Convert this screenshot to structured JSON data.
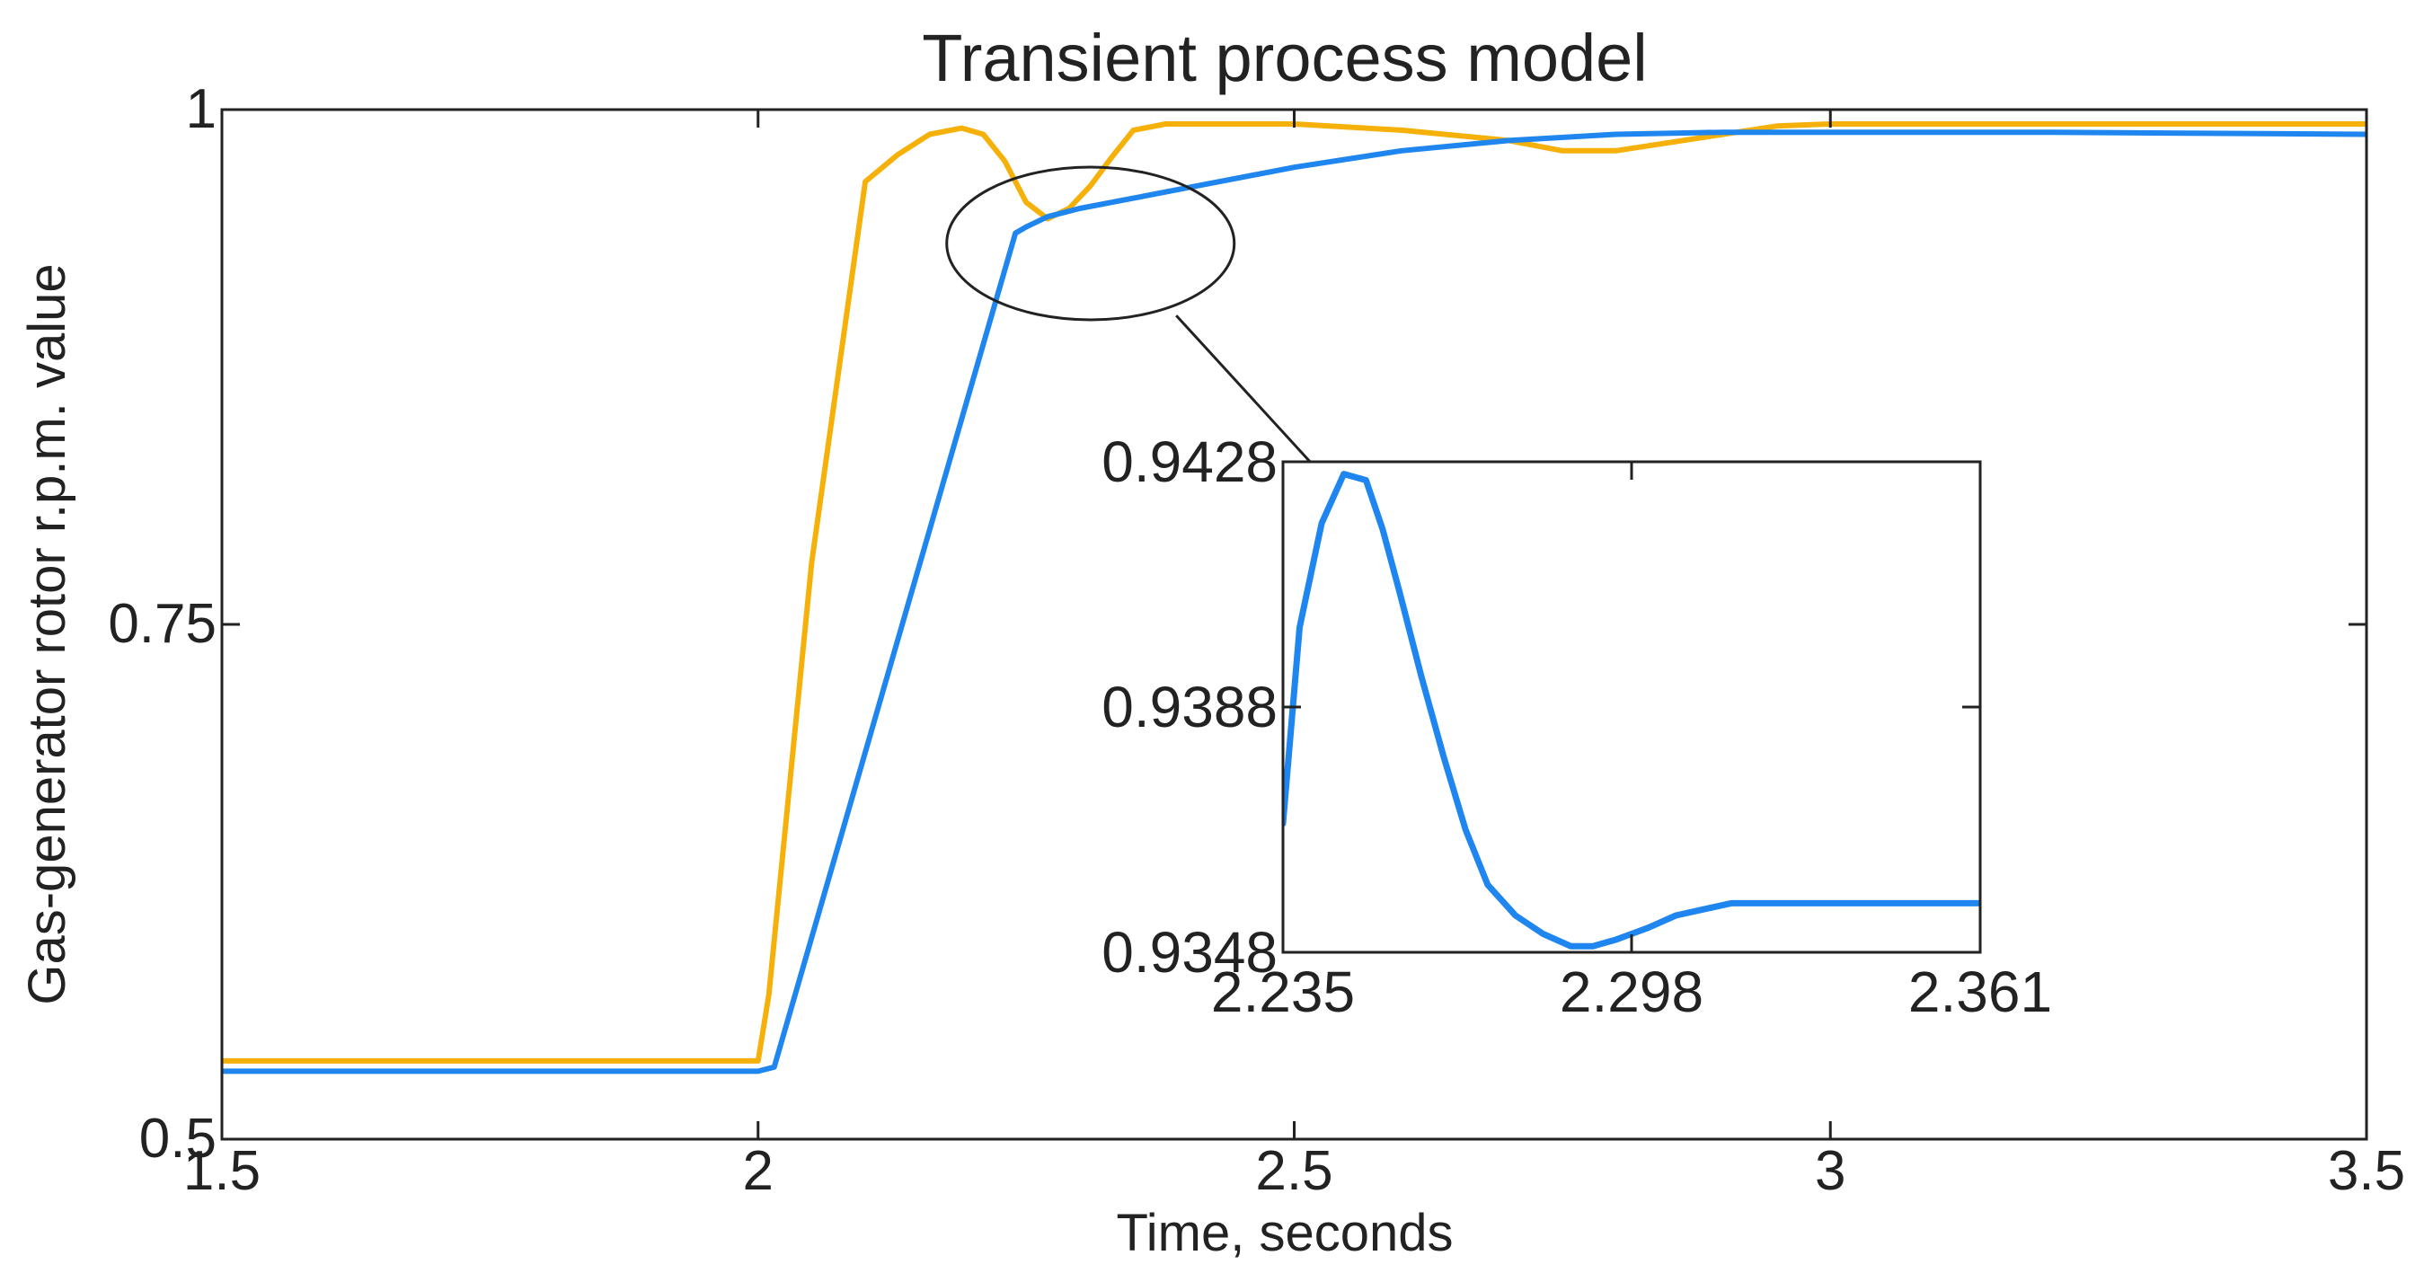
{
  "colors": {
    "blue_series": "#1f86f0",
    "orange_series": "#f5b10a",
    "axes": "#222222",
    "background": "#ffffff"
  },
  "chart_data": [
    {
      "type": "line",
      "title": "Transient process model",
      "xlabel": "Time, seconds",
      "ylabel": "Gas-generator rotor r.p.m. value",
      "xlim": [
        1.5,
        3.5
      ],
      "ylim": [
        0.5,
        1.0
      ],
      "xticks": [
        1.5,
        2,
        2.5,
        3,
        3.5
      ],
      "xtick_labels": [
        "1.5",
        "2",
        "2.5",
        "3",
        "3.5"
      ],
      "yticks": [
        0.5,
        0.75,
        1.0
      ],
      "ytick_labels": [
        "0.5",
        "0.75",
        "1"
      ],
      "grid": false,
      "series": [
        {
          "color": "#f5b10a",
          "x": [
            1.5,
            2.0,
            2.01,
            2.05,
            2.1,
            2.13,
            2.16,
            2.19,
            2.21,
            2.23,
            2.25,
            2.27,
            2.29,
            2.31,
            2.33,
            2.35,
            2.38,
            2.5,
            2.6,
            2.7,
            2.75,
            2.8,
            2.85,
            2.9,
            2.95,
            3.0,
            3.5
          ],
          "y": [
            0.538,
            0.538,
            0.57,
            0.78,
            0.965,
            0.978,
            0.988,
            0.991,
            0.988,
            0.975,
            0.955,
            0.947,
            0.952,
            0.963,
            0.977,
            0.99,
            0.993,
            0.993,
            0.99,
            0.985,
            0.98,
            0.98,
            0.984,
            0.988,
            0.992,
            0.993,
            0.993
          ]
        },
        {
          "color": "#1f86f0",
          "x": [
            1.5,
            2.0,
            2.015,
            2.24,
            2.25,
            2.27,
            2.3,
            2.35,
            2.4,
            2.5,
            2.6,
            2.7,
            2.8,
            2.9,
            3.0,
            3.2,
            3.5
          ],
          "y": [
            0.533,
            0.533,
            0.535,
            0.94,
            0.943,
            0.948,
            0.952,
            0.957,
            0.962,
            0.972,
            0.98,
            0.985,
            0.988,
            0.989,
            0.989,
            0.989,
            0.988
          ]
        }
      ],
      "annotations": [
        {
          "type": "ellipse",
          "cx": 2.31,
          "cy": 0.935
        },
        {
          "type": "connector",
          "from_x": 2.39,
          "from_y": 0.9,
          "to_x": 2.52,
          "to_y": 0.826
        }
      ]
    },
    {
      "type": "line",
      "inset": true,
      "xlim": [
        2.235,
        2.361
      ],
      "ylim": [
        0.9348,
        0.9428
      ],
      "xticks": [
        2.235,
        2.298,
        2.361
      ],
      "xtick_labels": [
        "2.235",
        "2.298",
        "2.361"
      ],
      "yticks": [
        0.9348,
        0.9388,
        0.9428
      ],
      "ytick_labels": [
        "0.9348",
        "0.9388",
        "0.9428"
      ],
      "grid": false,
      "series": [
        {
          "color": "#1f86f0",
          "x": [
            2.235,
            2.238,
            2.242,
            2.246,
            2.25,
            2.253,
            2.256,
            2.26,
            2.264,
            2.268,
            2.272,
            2.277,
            2.282,
            2.287,
            2.291,
            2.295,
            2.298,
            2.301,
            2.306,
            2.311,
            2.316,
            2.322,
            2.328,
            2.34,
            2.361
          ],
          "y": [
            0.9369,
            0.9401,
            0.9418,
            0.9426,
            0.9425,
            0.9417,
            0.9407,
            0.9393,
            0.938,
            0.9368,
            0.9359,
            0.9354,
            0.9351,
            0.9349,
            0.9349,
            0.935,
            0.9351,
            0.9352,
            0.9354,
            0.9355,
            0.9356,
            0.9356,
            0.9356,
            0.9356,
            0.9356
          ]
        }
      ]
    }
  ]
}
